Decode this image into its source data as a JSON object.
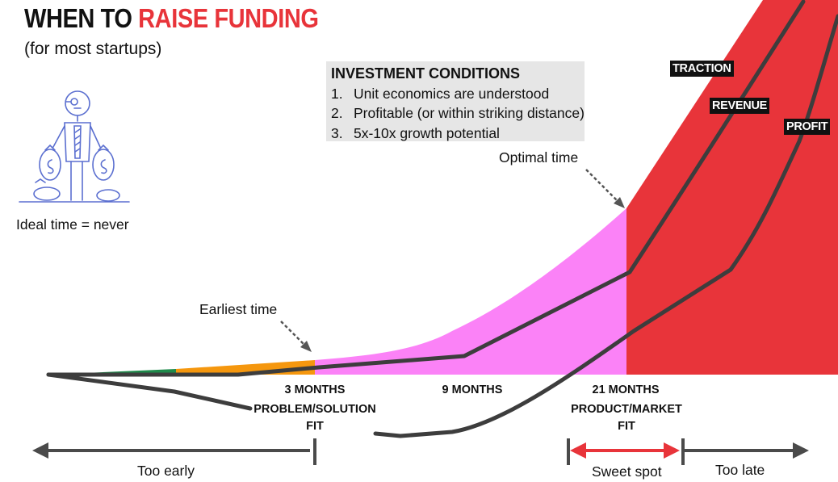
{
  "title": {
    "part1": "WHEN TO ",
    "part2": "RAISE FUNDING"
  },
  "subtitle": "(for most startups)",
  "investment_conditions": {
    "heading": "INVESTMENT CONDITIONS",
    "items": [
      {
        "num": "1.",
        "text": "Unit economics are understood"
      },
      {
        "num": "2.",
        "text": "Profitable (or within striking distance)"
      },
      {
        "num": "3.",
        "text": "5x-10x growth potential"
      }
    ]
  },
  "ideal_time": "Ideal time = never",
  "annotations": {
    "optimal": "Optimal time",
    "earliest": "Earliest time"
  },
  "curves": {
    "traction": "TRACTION",
    "revenue": "REVENUE",
    "profit": "PROFIT"
  },
  "milestones": {
    "m3": "3 MONTHS",
    "m9": "9 MONTHS",
    "m21": "21 MONTHS",
    "problem_solution": [
      "PROBLEM/SOLUTION",
      "FIT"
    ],
    "product_market": [
      "PRODUCT/MARKET",
      "FIT"
    ]
  },
  "ranges": {
    "too_early": "Too early",
    "sweet_spot": "Sweet spot",
    "too_late": "Too late"
  },
  "colors": {
    "red": "#e8343a",
    "pink": "#fb82f7",
    "orange": "#f5970e",
    "green": "#1e8a4a",
    "dark": "#3d3d3d",
    "box": "#e6e6e6",
    "sketch": "#5b6fd0"
  }
}
